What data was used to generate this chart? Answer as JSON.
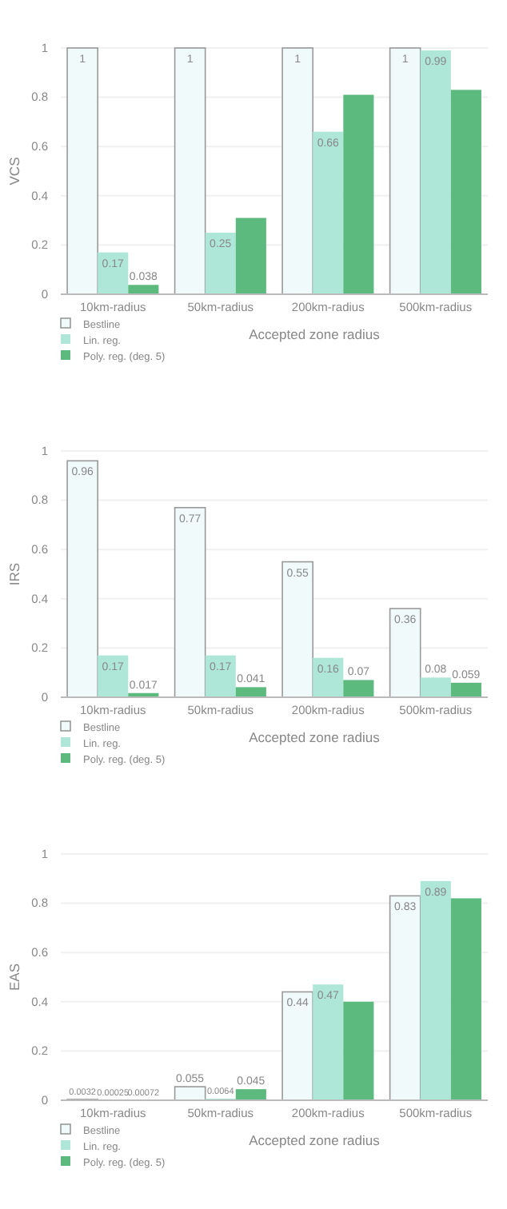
{
  "chart_data": [
    {
      "type": "bar",
      "xlabel": "Accepted zone radius",
      "ylabel": "VCS",
      "categories": [
        "10km-radius",
        "50km-radius",
        "200km-radius",
        "500km-radius"
      ],
      "ylim": [
        0,
        1
      ],
      "yticks": [
        0,
        0.2,
        0.4,
        0.6,
        0.8,
        1
      ],
      "grid": "y",
      "legend": "bottom left",
      "series": [
        {
          "name": "Bestline",
          "color": "#f0fafa",
          "values": [
            1,
            1,
            1,
            1
          ],
          "value_labels": [
            "1",
            "1",
            "1",
            "1"
          ]
        },
        {
          "name": "Lin. reg.",
          "color": "#aee6d8",
          "values": [
            0.17,
            0.25,
            0.66,
            0.99
          ],
          "value_labels": [
            "0.17",
            "0.25",
            "0.66",
            "0.99"
          ]
        },
        {
          "name": "Poly. reg. (deg. 5)",
          "color": "#5dba7f",
          "values": [
            0.038,
            0.31,
            0.81,
            0.83
          ],
          "value_labels": [
            "0.038",
            null,
            null,
            null
          ]
        }
      ]
    },
    {
      "type": "bar",
      "xlabel": "Accepted zone radius",
      "ylabel": "IRS",
      "categories": [
        "10km-radius",
        "50km-radius",
        "200km-radius",
        "500km-radius"
      ],
      "ylim": [
        0,
        1
      ],
      "yticks": [
        0,
        0.2,
        0.4,
        0.6,
        0.8,
        1
      ],
      "grid": "y",
      "legend": "bottom left",
      "data_labels": true,
      "series": [
        {
          "name": "Bestline",
          "color": "#f0fafa",
          "values": [
            0.96,
            0.77,
            0.55,
            0.36
          ]
        },
        {
          "name": "Lin. reg.",
          "color": "#aee6d8",
          "values": [
            0.17,
            0.17,
            0.16,
            0.08
          ]
        },
        {
          "name": "Poly. reg. (deg. 5)",
          "color": "#5dba7f",
          "values": [
            0.017,
            0.041,
            0.07,
            0.059
          ]
        }
      ]
    },
    {
      "type": "bar",
      "xlabel": "Accepted zone radius",
      "ylabel": "EAS",
      "categories": [
        "10km-radius",
        "50km-radius",
        "200km-radius",
        "500km-radius"
      ],
      "ylim": [
        0,
        1
      ],
      "yticks": [
        0,
        0.2,
        0.4,
        0.6,
        0.8,
        1
      ],
      "grid": "y",
      "legend": "bottom left",
      "series": [
        {
          "name": "Bestline",
          "color": "#f0fafa",
          "values": [
            0.0032,
            0.055,
            0.44,
            0.83
          ],
          "value_labels": [
            "0.0032",
            "0.055",
            "0.44",
            "0.83"
          ]
        },
        {
          "name": "Lin. reg.",
          "color": "#aee6d8",
          "values": [
            0.00025,
            0.0064,
            0.47,
            0.89
          ],
          "value_labels": [
            "0.00025",
            "0.0064",
            "0.47",
            "0.89"
          ]
        },
        {
          "name": "Poly. reg. (deg. 5)",
          "color": "#5dba7f",
          "values": [
            0.00072,
            0.045,
            0.4,
            0.82
          ],
          "value_labels": [
            "0.00072",
            "0.045",
            null,
            null
          ]
        }
      ]
    }
  ]
}
